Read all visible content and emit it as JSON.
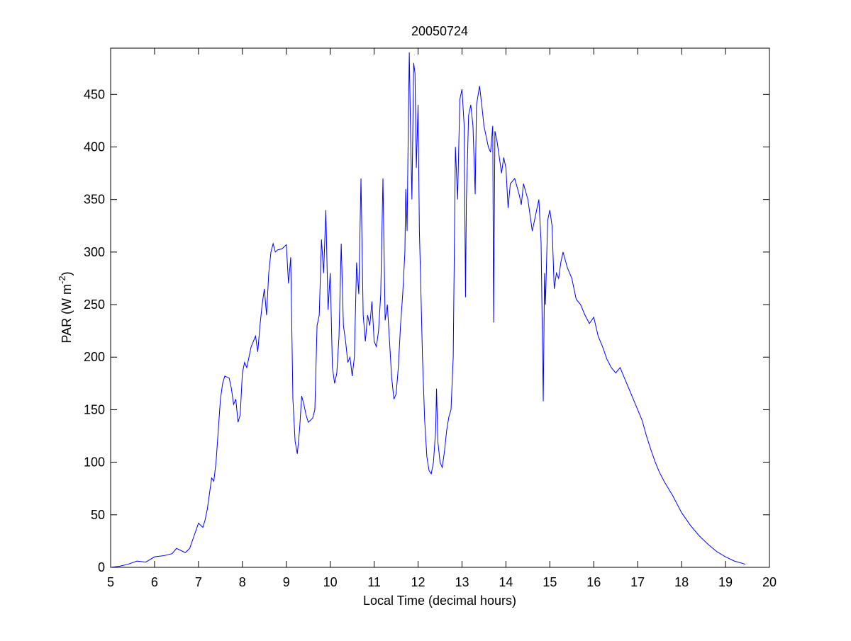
{
  "chart_data": {
    "type": "line",
    "title": "20050724",
    "x_label": "Local Time (decimal hours)",
    "y_label": [
      "PAR (W m",
      "-2",
      ")"
    ],
    "color": "#0000ff",
    "xlim": [
      5,
      20
    ],
    "ylim": [
      0,
      494
    ],
    "xticks": [
      5,
      6,
      7,
      8,
      9,
      10,
      11,
      12,
      13,
      14,
      15,
      16,
      17,
      18,
      19,
      20
    ],
    "yticks": [
      0,
      50,
      100,
      150,
      200,
      250,
      300,
      350,
      400,
      450
    ],
    "x": [
      5.0,
      5.2,
      5.4,
      5.6,
      5.8,
      6.0,
      6.2,
      6.4,
      6.5,
      6.6,
      6.7,
      6.8,
      6.9,
      7.0,
      7.05,
      7.1,
      7.15,
      7.2,
      7.25,
      7.3,
      7.35,
      7.4,
      7.45,
      7.5,
      7.55,
      7.6,
      7.7,
      7.75,
      7.8,
      7.85,
      7.9,
      7.95,
      8.0,
      8.05,
      8.1,
      8.15,
      8.2,
      8.25,
      8.3,
      8.35,
      8.4,
      8.45,
      8.5,
      8.55,
      8.6,
      8.65,
      8.7,
      8.75,
      8.8,
      8.9,
      9.0,
      9.05,
      9.1,
      9.15,
      9.2,
      9.25,
      9.3,
      9.35,
      9.4,
      9.45,
      9.5,
      9.6,
      9.65,
      9.7,
      9.75,
      9.8,
      9.85,
      9.9,
      9.95,
      10.0,
      10.05,
      10.1,
      10.15,
      10.2,
      10.25,
      10.3,
      10.35,
      10.4,
      10.45,
      10.5,
      10.55,
      10.6,
      10.65,
      10.7,
      10.75,
      10.8,
      10.85,
      10.9,
      10.95,
      11.0,
      11.05,
      11.1,
      11.15,
      11.2,
      11.25,
      11.3,
      11.35,
      11.4,
      11.45,
      11.5,
      11.55,
      11.6,
      11.65,
      11.7,
      11.72,
      11.75,
      11.78,
      11.8,
      11.83,
      11.86,
      11.9,
      11.93,
      11.96,
      12.0,
      12.03,
      12.06,
      12.1,
      12.15,
      12.2,
      12.25,
      12.3,
      12.35,
      12.4,
      12.42,
      12.45,
      12.5,
      12.55,
      12.6,
      12.65,
      12.7,
      12.75,
      12.8,
      12.85,
      12.9,
      12.95,
      13.0,
      13.05,
      13.08,
      13.1,
      13.15,
      13.2,
      13.25,
      13.3,
      13.33,
      13.4,
      13.45,
      13.5,
      13.6,
      13.65,
      13.7,
      13.72,
      13.75,
      13.8,
      13.85,
      13.9,
      13.95,
      14.0,
      14.05,
      14.1,
      14.2,
      14.3,
      14.35,
      14.4,
      14.5,
      14.6,
      14.65,
      14.7,
      14.75,
      14.8,
      14.85,
      14.88,
      14.9,
      14.95,
      15.0,
      15.05,
      15.1,
      15.15,
      15.2,
      15.25,
      15.3,
      15.4,
      15.5,
      15.6,
      15.7,
      15.8,
      15.9,
      16.0,
      16.1,
      16.2,
      16.3,
      16.4,
      16.5,
      16.6,
      16.7,
      16.8,
      16.9,
      17.0,
      17.1,
      17.2,
      17.3,
      17.4,
      17.5,
      17.6,
      17.7,
      17.8,
      17.9,
      18.0,
      18.2,
      18.4,
      18.6,
      18.8,
      19.0,
      19.2,
      19.45
    ],
    "values": [
      0,
      1,
      3,
      6,
      5,
      10,
      11,
      13,
      18,
      16,
      14,
      18,
      30,
      42,
      40,
      38,
      45,
      55,
      70,
      85,
      82,
      100,
      130,
      160,
      175,
      182,
      180,
      170,
      155,
      160,
      138,
      145,
      185,
      195,
      190,
      200,
      210,
      215,
      220,
      205,
      230,
      250,
      265,
      240,
      280,
      300,
      308,
      300,
      302,
      303,
      307,
      270,
      295,
      160,
      120,
      108,
      130,
      163,
      155,
      145,
      138,
      142,
      150,
      230,
      240,
      312,
      280,
      340,
      245,
      280,
      190,
      175,
      185,
      220,
      308,
      230,
      215,
      195,
      200,
      182,
      200,
      290,
      260,
      370,
      240,
      215,
      240,
      230,
      253,
      215,
      210,
      225,
      260,
      370,
      235,
      250,
      215,
      180,
      160,
      165,
      190,
      230,
      260,
      300,
      360,
      320,
      430,
      490,
      410,
      350,
      480,
      470,
      380,
      440,
      320,
      270,
      200,
      140,
      105,
      92,
      89,
      100,
      130,
      170,
      120,
      100,
      95,
      110,
      130,
      143,
      150,
      200,
      400,
      350,
      445,
      455,
      420,
      257,
      350,
      430,
      440,
      420,
      355,
      440,
      458,
      440,
      420,
      400,
      395,
      420,
      233,
      415,
      405,
      390,
      375,
      390,
      380,
      342,
      365,
      370,
      355,
      345,
      365,
      350,
      320,
      330,
      340,
      350,
      310,
      158,
      280,
      250,
      330,
      340,
      325,
      265,
      280,
      275,
      290,
      300,
      285,
      275,
      255,
      250,
      240,
      232,
      238,
      220,
      210,
      198,
      190,
      185,
      190,
      180,
      170,
      160,
      150,
      140,
      125,
      112,
      100,
      90,
      82,
      75,
      68,
      60,
      52,
      40,
      30,
      22,
      15,
      10,
      6,
      3
    ]
  }
}
